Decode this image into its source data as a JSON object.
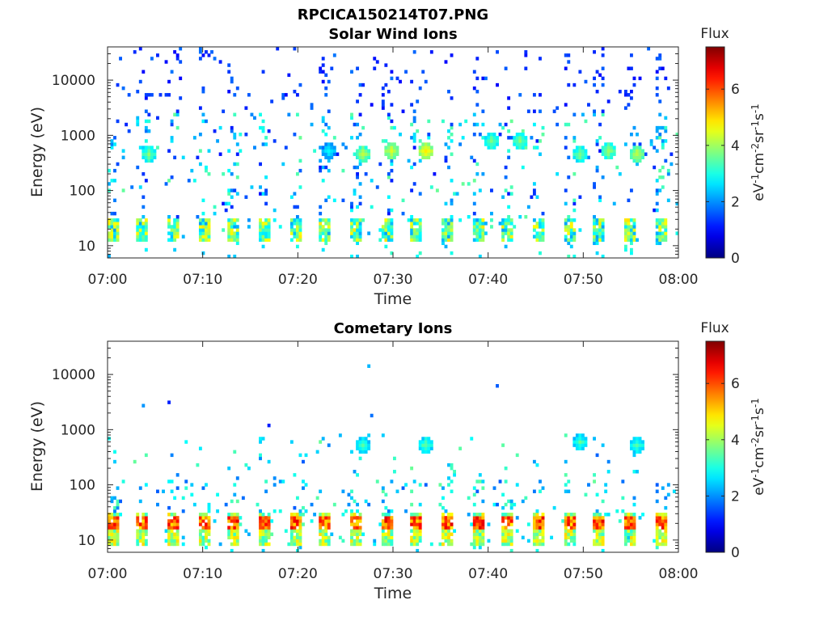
{
  "figure": {
    "file_title": "RPCICA150214T07.PNG"
  },
  "chart_data": [
    {
      "type": "heatmap",
      "title": "Solar Wind Ions",
      "xlabel": "Time",
      "ylabel": "Energy (eV)",
      "x_range": [
        "07:00",
        "08:00"
      ],
      "x_ticks": [
        "07:00",
        "07:10",
        "07:20",
        "07:30",
        "07:40",
        "07:50",
        "08:00"
      ],
      "y_scale": "log",
      "y_range": [
        6,
        40000
      ],
      "y_ticks": [
        10,
        100,
        1000,
        10000
      ],
      "y_tick_labels": [
        "10",
        "100",
        "1000",
        "10000"
      ],
      "colorbar": {
        "title": "Flux",
        "unit_base": [
          "eV",
          "cm",
          "sr",
          "s"
        ],
        "unit_exp": [
          "-1",
          "-2",
          "-1",
          "-1"
        ],
        "range": [
          0,
          7.5
        ],
        "ticks": [
          0,
          2,
          4,
          6
        ],
        "tick_labels": [
          "0",
          "2",
          "4",
          "6"
        ],
        "colormap": "jet"
      },
      "sweep_period_min": 3.2,
      "low_energy_band_eV": [
        12,
        30
      ],
      "dense_patches": [
        {
          "t_min": 4.3,
          "energy_eV": 450,
          "flux": 3.8
        },
        {
          "t_min": 23.2,
          "energy_eV": 500,
          "flux": 3.0
        },
        {
          "t_min": 26.6,
          "energy_eV": 450,
          "flux": 4.2
        },
        {
          "t_min": 29.8,
          "energy_eV": 500,
          "flux": 4.5
        },
        {
          "t_min": 33.4,
          "energy_eV": 480,
          "flux": 4.8
        },
        {
          "t_min": 40.3,
          "energy_eV": 700,
          "flux": 3.8
        },
        {
          "t_min": 43.1,
          "energy_eV": 700,
          "flux": 3.8
        },
        {
          "t_min": 49.4,
          "energy_eV": 450,
          "flux": 3.8
        },
        {
          "t_min": 52.6,
          "energy_eV": 480,
          "flux": 4.0
        },
        {
          "t_min": 55.5,
          "energy_eV": 450,
          "flux": 4.3
        }
      ]
    },
    {
      "type": "heatmap",
      "title": "Cometary Ions",
      "xlabel": "Time",
      "ylabel": "Energy (eV)",
      "x_range": [
        "07:00",
        "08:00"
      ],
      "x_ticks": [
        "07:00",
        "07:10",
        "07:20",
        "07:30",
        "07:40",
        "07:50",
        "08:00"
      ],
      "y_scale": "log",
      "y_range": [
        6,
        40000
      ],
      "y_ticks": [
        10,
        100,
        1000,
        10000
      ],
      "y_tick_labels": [
        "10",
        "100",
        "1000",
        "10000"
      ],
      "colorbar": {
        "title": "Flux",
        "unit_base": [
          "eV",
          "cm",
          "sr",
          "s"
        ],
        "unit_exp": [
          "-1",
          "-2",
          "-1",
          "-1"
        ],
        "range": [
          0,
          7.5
        ],
        "ticks": [
          0,
          2,
          4,
          6
        ],
        "tick_labels": [
          "0",
          "2",
          "4",
          "6"
        ],
        "colormap": "jet"
      },
      "sweep_period_min": 3.2,
      "low_energy_band_eV": [
        8,
        32
      ],
      "peak_flux": 6.8,
      "dense_patches": [
        {
          "t_min": 26.8,
          "energy_eV": 500,
          "flux": 3.5
        },
        {
          "t_min": 33.4,
          "energy_eV": 520,
          "flux": 3.6
        },
        {
          "t_min": 49.4,
          "energy_eV": 550,
          "flux": 3.5
        },
        {
          "t_min": 55.5,
          "energy_eV": 480,
          "flux": 3.5
        }
      ]
    }
  ]
}
